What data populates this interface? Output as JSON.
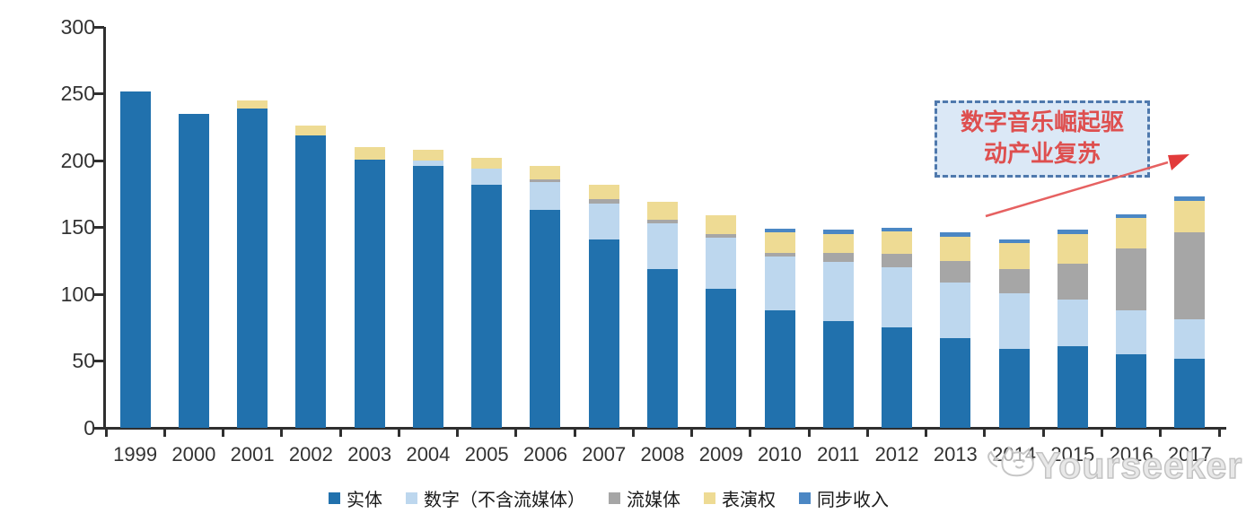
{
  "chart_data": {
    "type": "bar",
    "stacked": true,
    "title": "",
    "xlabel": "",
    "ylabel": "",
    "ylim": [
      0,
      300
    ],
    "yticks": [
      0,
      50,
      100,
      150,
      200,
      250,
      300
    ],
    "grid": false,
    "legend_position": "bottom",
    "categories": [
      "1999",
      "2000",
      "2001",
      "2002",
      "2003",
      "2004",
      "2005",
      "2006",
      "2007",
      "2008",
      "2009",
      "2010",
      "2011",
      "2012",
      "2013",
      "2014",
      "2015",
      "2016",
      "2017"
    ],
    "series": [
      {
        "name": "实体",
        "color": "#2171AD",
        "values": [
          252,
          235,
          239,
          219,
          201,
          196,
          182,
          163,
          141,
          119,
          104,
          88,
          80,
          75,
          67,
          59,
          61,
          55,
          52
        ]
      },
      {
        "name": "数字（不含流媒体）",
        "color": "#BDD7EE",
        "values": [
          0,
          0,
          0,
          0,
          0,
          4,
          12,
          21,
          27,
          34,
          38,
          40,
          44,
          45,
          42,
          42,
          35,
          33,
          29
        ]
      },
      {
        "name": "流媒体",
        "color": "#A6A6A6",
        "values": [
          0,
          0,
          0,
          0,
          0,
          0,
          0,
          2,
          3,
          3,
          3,
          3,
          7,
          10,
          16,
          18,
          27,
          46,
          65
        ]
      },
      {
        "name": "表演权",
        "color": "#EEDB94",
        "values": [
          0,
          0,
          6,
          7,
          9,
          8,
          8,
          10,
          11,
          13,
          14,
          15,
          14,
          17,
          18,
          19,
          22,
          23,
          24
        ]
      },
      {
        "name": "同步收入",
        "color": "#4B87C4",
        "values": [
          0,
          0,
          0,
          0,
          0,
          0,
          0,
          0,
          0,
          0,
          0,
          3,
          3,
          3,
          3,
          3,
          3,
          3,
          3
        ]
      }
    ]
  },
  "annotation": {
    "line1": "数字音乐崛起驱",
    "line2": "动产业复苏",
    "box_fill": "#dbe8f6",
    "border_color": "#4f79ad",
    "text_color": "#de4f4f",
    "arrow_color": "#e66161"
  },
  "watermark": {
    "text": "Yourseeker",
    "logo": "cat-doodle-icon",
    "color": "#c3c3c3"
  },
  "axis": {
    "line_color": "#2f2f2f",
    "label_color": "#333333"
  }
}
